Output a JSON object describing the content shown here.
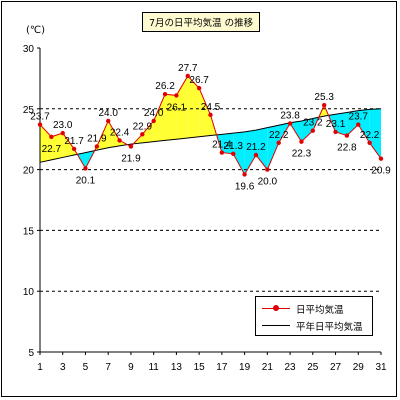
{
  "title": "7月の日平均気温 の推移",
  "unit": "(℃)",
  "chart_data": {
    "type": "line",
    "x": [
      1,
      2,
      3,
      4,
      5,
      6,
      7,
      8,
      9,
      10,
      11,
      12,
      13,
      14,
      15,
      16,
      17,
      18,
      19,
      20,
      21,
      22,
      23,
      24,
      25,
      26,
      27,
      28,
      29,
      30,
      31
    ],
    "xticks": [
      1,
      3,
      5,
      7,
      9,
      11,
      13,
      15,
      17,
      19,
      21,
      23,
      25,
      27,
      29,
      31
    ],
    "ylim": [
      5,
      30
    ],
    "yticks": [
      5,
      10,
      15,
      20,
      25,
      30
    ],
    "grid": "dashed horizontal at 10, 15, 20, 25",
    "series": [
      {
        "name": "日平均気温",
        "color": "#e00000",
        "values": [
          23.7,
          22.7,
          23.0,
          21.7,
          20.1,
          21.9,
          24.0,
          22.4,
          21.9,
          22.9,
          24.0,
          26.2,
          26.1,
          27.7,
          26.7,
          24.5,
          21.4,
          21.3,
          19.6,
          21.2,
          20.0,
          22.2,
          23.8,
          22.3,
          23.2,
          25.3,
          23.1,
          22.8,
          23.7,
          22.2,
          20.9
        ]
      },
      {
        "name": "平年日平均気温",
        "color": "#000000",
        "values": [
          20.6,
          20.8,
          21.0,
          21.2,
          21.4,
          21.6,
          21.8,
          21.95,
          22.1,
          22.2,
          22.3,
          22.4,
          22.5,
          22.6,
          22.7,
          22.8,
          22.9,
          23.0,
          23.1,
          23.25,
          23.45,
          23.65,
          23.85,
          24.0,
          24.2,
          24.4,
          24.55,
          24.7,
          24.85,
          24.95,
          25.0
        ]
      }
    ],
    "fill_above_normal": "#ffff33",
    "fill_below_normal": "#00eeff",
    "data_labels": [
      "23.7",
      "22.7",
      "23.0",
      "21.7",
      "20.1",
      "21.9",
      "24.0",
      "22.4",
      "21.9",
      "22.9",
      "24.0",
      "26.2",
      "26.1",
      "27.7",
      "26.7",
      "24.5",
      "21.4",
      "21.3",
      "19.6",
      "21.2",
      "20.0",
      "22.2",
      "23.8",
      "22.3",
      "23.2",
      "25.3",
      "23.1",
      "22.8",
      "23.7",
      "22.2",
      "20.9"
    ]
  }
}
